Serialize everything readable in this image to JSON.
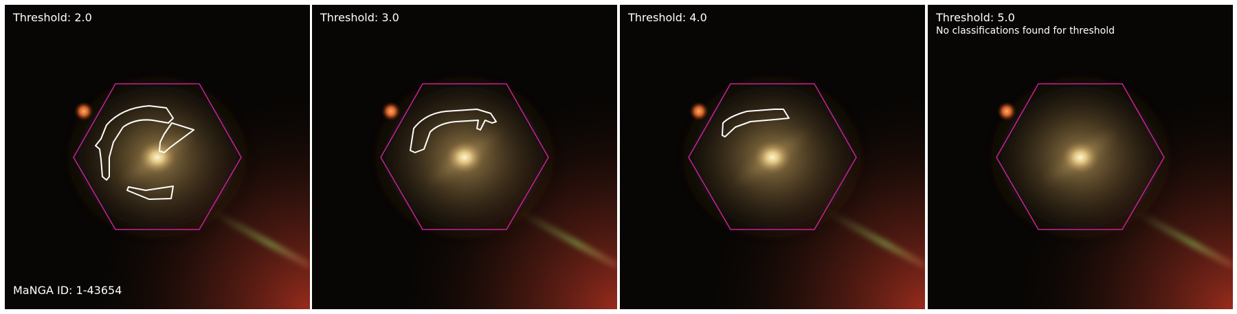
{
  "panels": [
    {
      "title": "Threshold: 2.0",
      "note": "",
      "footer": "MaNGA ID: 1-43654"
    },
    {
      "title": "Threshold: 3.0",
      "note": "",
      "footer": ""
    },
    {
      "title": "Threshold: 4.0",
      "note": "",
      "footer": ""
    },
    {
      "title": "Threshold: 5.0",
      "note": "No classifications found for threshold",
      "footer": ""
    }
  ],
  "colors": {
    "hexagon": "#c8219c",
    "contour": "#ffffff",
    "background": "#080604"
  },
  "icons": [
    "galaxy-image",
    "ifu-hexagon",
    "classification-contour"
  ]
}
